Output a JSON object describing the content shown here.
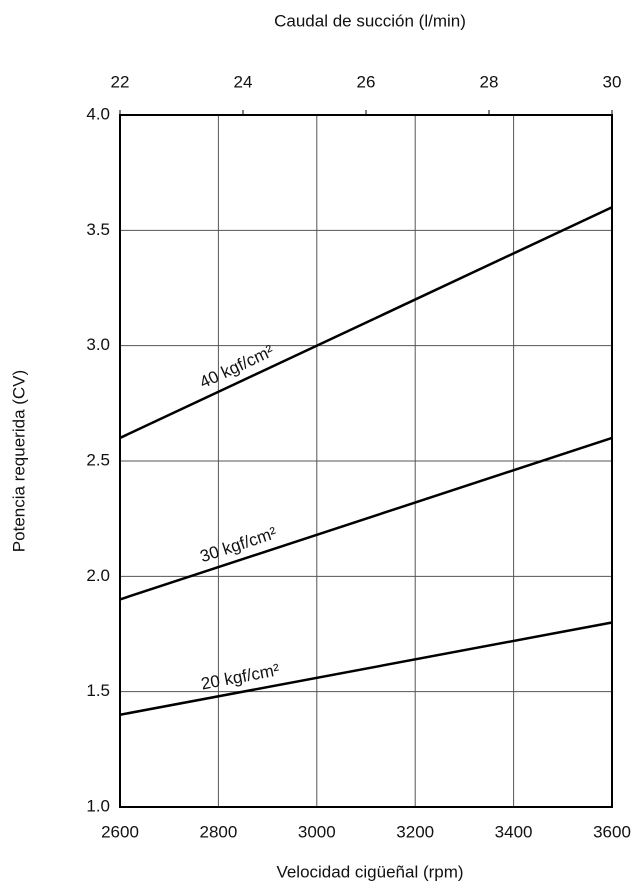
{
  "chart_data": {
    "type": "line",
    "x_label": "Velocidad cigüeñal (rpm)",
    "x2_label": "Caudal de succión (l/min)",
    "y_label": "Potencia requerida (CV)",
    "x": [
      2600,
      3600
    ],
    "series": [
      {
        "name": "40 kgf/cm²",
        "color": "#000000",
        "values": [
          2.6,
          3.6
        ]
      },
      {
        "name": "30 kgf/cm²",
        "color": "#000000",
        "values": [
          1.9,
          2.6
        ]
      },
      {
        "name": "20 kgf/cm²",
        "color": "#000000",
        "values": [
          1.4,
          1.8
        ]
      }
    ],
    "xlim": [
      2600,
      3600
    ],
    "xticks": [
      2600,
      2800,
      3000,
      3200,
      3400,
      3600
    ],
    "x2lim": [
      22,
      30
    ],
    "x2ticks": [
      22,
      24,
      26,
      28,
      30
    ],
    "ylim": [
      1.0,
      4.0
    ],
    "yticks": [
      {
        "value": 1,
        "label": "1.0"
      },
      1.5,
      {
        "value": 2,
        "label": "2.0"
      },
      2.5,
      {
        "value": 3,
        "label": "3.0"
      },
      3.5,
      {
        "value": 4,
        "label": "4.0"
      }
    ],
    "grid": true
  }
}
